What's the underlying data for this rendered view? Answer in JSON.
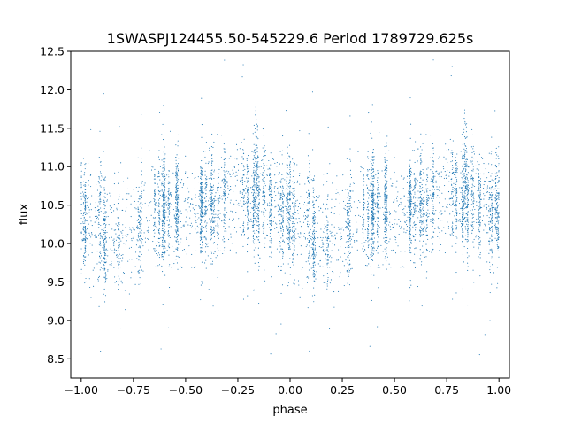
{
  "chart_data": {
    "type": "scatter",
    "title": "1SWASPJ124455.50-545229.6 Period 1789729.625s",
    "xlabel": "phase",
    "ylabel": "flux",
    "xlim": [
      -1.05,
      1.05
    ],
    "ylim": [
      8.25,
      12.5
    ],
    "xticks": [
      -1.0,
      -0.75,
      -0.5,
      -0.25,
      0.0,
      0.25,
      0.5,
      0.75,
      1.0
    ],
    "xtick_labels": [
      "−1.00",
      "−0.75",
      "−0.50",
      "−0.25",
      "0.00",
      "0.25",
      "0.50",
      "0.75",
      "1.00"
    ],
    "yticks": [
      8.5,
      9.0,
      9.5,
      10.0,
      10.5,
      11.0,
      11.5,
      12.0,
      12.5
    ],
    "ytick_labels": [
      "8.5",
      "9.0",
      "9.5",
      "10.0",
      "10.5",
      "11.0",
      "11.5",
      "12.0",
      "12.5"
    ],
    "grid": false,
    "legend": "none",
    "marker_color": "#1f77b4",
    "phase_profile": [
      {
        "phase": 0.0,
        "mean": 10.4
      },
      {
        "phase": 0.05,
        "mean": 10.2
      },
      {
        "phase": 0.1,
        "mean": 10.15
      },
      {
        "phase": 0.15,
        "mean": 10.05
      },
      {
        "phase": 0.2,
        "mean": 10.1
      },
      {
        "phase": 0.25,
        "mean": 10.2
      },
      {
        "phase": 0.3,
        "mean": 10.3
      },
      {
        "phase": 0.35,
        "mean": 10.35
      },
      {
        "phase": 0.4,
        "mean": 10.4
      },
      {
        "phase": 0.45,
        "mean": 10.45
      },
      {
        "phase": 0.5,
        "mean": 10.45
      },
      {
        "phase": 0.55,
        "mean": 10.45
      },
      {
        "phase": 0.6,
        "mean": 10.5
      },
      {
        "phase": 0.65,
        "mean": 10.55
      },
      {
        "phase": 0.7,
        "mean": 10.6
      },
      {
        "phase": 0.75,
        "mean": 10.65
      },
      {
        "phase": 0.8,
        "mean": 10.7
      },
      {
        "phase": 0.85,
        "mean": 10.65
      },
      {
        "phase": 0.9,
        "mean": 10.6
      },
      {
        "phase": 0.95,
        "mean": 10.5
      },
      {
        "phase": 1.0,
        "mean": 10.4
      }
    ],
    "scatter_std": 0.35,
    "n_points_per_cycle": 3200
  }
}
